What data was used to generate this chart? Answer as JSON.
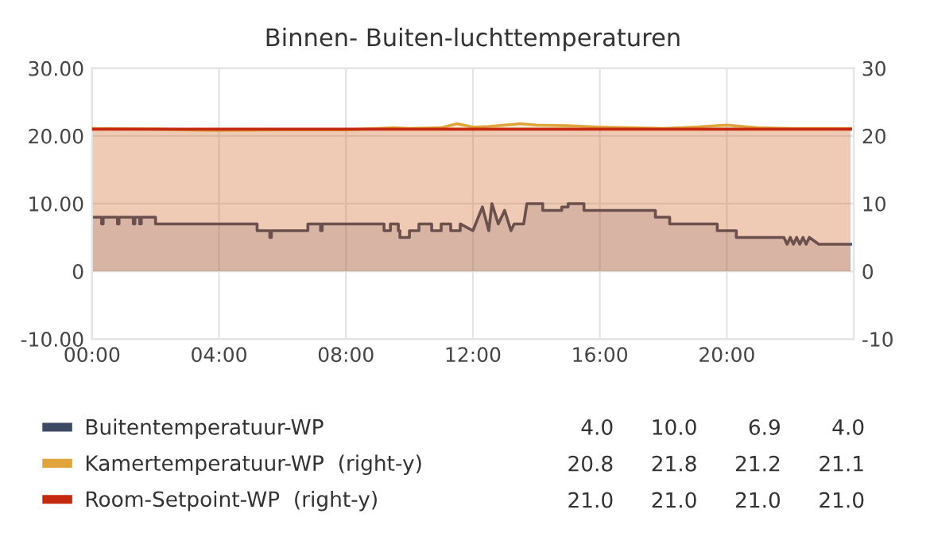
{
  "chart_data": {
    "type": "area",
    "title": "Binnen- Buiten-luchttemperaturen",
    "xlim": [
      0,
      24
    ],
    "xticks": [
      {
        "value": 0,
        "label": "00:00"
      },
      {
        "value": 4,
        "label": "04:00"
      },
      {
        "value": 8,
        "label": "08:00"
      },
      {
        "value": 12,
        "label": "12:00"
      },
      {
        "value": 16,
        "label": "16:00"
      },
      {
        "value": 20,
        "label": "20:00"
      }
    ],
    "ylim": [
      -10,
      30
    ],
    "yticks": [
      {
        "value": -10,
        "label": "-10.00"
      },
      0,
      {
        "value": 10,
        "label": "10.00"
      },
      {
        "value": 20,
        "label": "20.00"
      },
      {
        "value": 30,
        "label": "30.00"
      }
    ],
    "y2lim": [
      -10,
      30
    ],
    "y2ticks": [
      -10,
      0,
      10,
      20,
      30
    ],
    "grid": true,
    "legend": "bottom",
    "series": [
      {
        "name": "Buitentemperatuur-WP",
        "color": "#3d4a63",
        "x": [
          0,
          0.3,
          0.3,
          0.35,
          0.35,
          0.8,
          0.8,
          0.85,
          0.85,
          1.3,
          1.3,
          1.35,
          1.35,
          1.5,
          1.5,
          1.55,
          1.55,
          2.0,
          2.0,
          5.2,
          5.2,
          5.6,
          5.6,
          5.65,
          5.65,
          6.8,
          6.8,
          7.2,
          7.2,
          7.25,
          7.25,
          9.2,
          9.2,
          9.4,
          9.4,
          9.65,
          9.65,
          9.7,
          9.7,
          10.0,
          10.0,
          10.3,
          10.3,
          10.7,
          10.7,
          11.0,
          11.0,
          11.3,
          11.3,
          11.6,
          11.6,
          12.0,
          12.3,
          12.5,
          12.6,
          12.8,
          13.0,
          13.2,
          13.3,
          13.6,
          13.7,
          14.2,
          14.2,
          14.8,
          14.8,
          15.0,
          15.0,
          15.5,
          15.5,
          17.75,
          17.75,
          18.2,
          18.2,
          19.7,
          19.7,
          20.3,
          20.3,
          21.8,
          21.9,
          22.0,
          22.1,
          22.2,
          22.3,
          22.4,
          22.5,
          22.6,
          22.9,
          23.9
        ],
        "values": [
          8,
          8,
          7,
          7,
          8,
          8,
          7,
          7,
          8,
          8,
          7,
          7,
          8,
          8,
          7,
          7,
          8,
          8,
          7,
          7,
          6,
          6,
          5,
          5,
          6,
          6,
          7,
          7,
          6,
          6,
          7,
          7,
          6,
          6,
          7,
          7,
          6,
          6,
          5,
          5,
          6,
          6,
          7,
          7,
          6,
          6,
          7,
          7,
          6,
          6,
          7,
          6,
          9.5,
          6,
          10,
          7,
          9,
          6,
          7,
          7,
          10,
          10,
          9,
          9,
          9.5,
          9.5,
          10,
          10,
          9,
          9,
          8,
          8,
          7,
          7,
          6,
          6,
          5,
          5,
          4,
          5,
          4,
          5,
          4,
          5,
          4,
          5,
          4,
          4
        ]
      },
      {
        "name": "Kamertemperatuur-WP  (right-y)",
        "color": "#e0a43a",
        "axis": "y2",
        "x": [
          0,
          2,
          4,
          6,
          8,
          9.5,
          10,
          11,
          11.5,
          12,
          12.5,
          13,
          13.5,
          14,
          15,
          16,
          17,
          18,
          19,
          20,
          20.5,
          21,
          22,
          23,
          23.9
        ],
        "values": [
          21.1,
          21.0,
          20.8,
          20.9,
          20.9,
          21.2,
          21.1,
          21.2,
          21.8,
          21.3,
          21.4,
          21.6,
          21.8,
          21.6,
          21.5,
          21.3,
          21.2,
          21.1,
          21.3,
          21.6,
          21.4,
          21.2,
          21.1,
          21.1,
          21.1
        ]
      },
      {
        "name": "Room-Setpoint-WP  (right-y)",
        "color": "#c4290f",
        "axis": "y2",
        "x": [
          0,
          23.9
        ],
        "values": [
          21.0,
          21.0
        ]
      }
    ],
    "annotations": [
      "4.0",
      "10.0",
      "6.9",
      "4.0",
      "20.8",
      "21.8",
      "21.2",
      "21.1",
      "21.0",
      "21.0",
      "21.0",
      "21.0"
    ]
  }
}
